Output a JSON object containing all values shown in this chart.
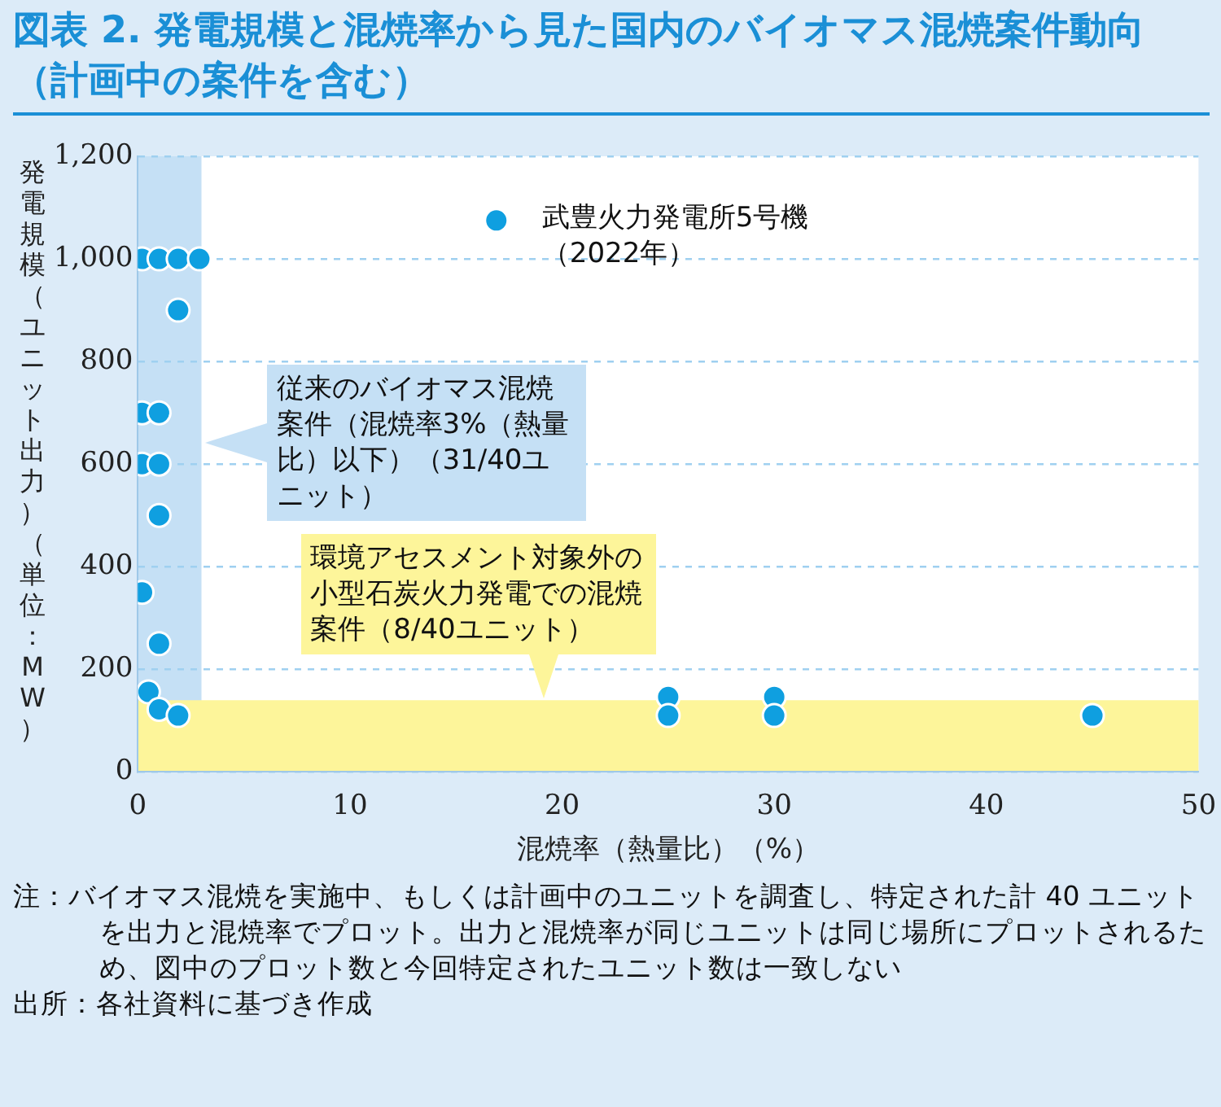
{
  "chart_data": {
    "type": "scatter",
    "title": "図表 2. 発電規模と混焼率から見た国内のバイオマス混焼案件動向（計画中の案件を含む）",
    "xlabel": "混焼率（熱量比）（%）",
    "ylabel": "発電規模（ユニット出力）（単位：MW）",
    "series": [
      {
        "color": "#0f9fe0",
        "x": [
          0.2,
          1,
          1.9,
          2.9,
          1.9,
          0.2,
          1,
          0.2,
          1,
          1,
          0.2,
          1,
          0.5,
          1,
          1.9,
          25,
          25,
          30,
          30,
          45,
          16.9
        ],
        "values": [
          1000,
          1000,
          1000,
          1000,
          900,
          700,
          700,
          600,
          600,
          500,
          350,
          250,
          156,
          122,
          110,
          146,
          110,
          146,
          110,
          110,
          1075
        ]
      }
    ],
    "xlim": [
      0,
      50
    ],
    "xticks": [
      0,
      10,
      20,
      30,
      40,
      50
    ],
    "ylim": [
      0,
      1200
    ],
    "yticks": [
      0,
      200,
      400,
      600,
      800,
      {
        "value": 1000,
        "label": "1,000"
      },
      {
        "value": 1200,
        "label": "1,200"
      }
    ],
    "grid": "y",
    "legend": false,
    "marker": "circle",
    "bands": [
      {
        "axis": "x",
        "from": 0,
        "to": 3,
        "color": "#c5e0f5",
        "label": "従来のバイオマス混焼案件（混焼率3%（熱量比）以下）（31/40ユニット）"
      },
      {
        "axis": "y",
        "from": 0,
        "to": 140,
        "color": "#fdf59a",
        "label": "環境アセスメント対象外の小型石炭火力発電での混焼案件（8/40ユニット）"
      }
    ],
    "annotations": [
      {
        "text": "武豊火力発電所5号機（2022年）",
        "x": 16.9,
        "y": 1075
      },
      "注：バイオマス混焼を実施中、もしくは計画中のユニットを調査し、特定された計 40 ユニットを出力と混焼率でプロット。出力と混焼率が同じユニットは同じ場所にプロットされるため、図中のプロット数と今回特定されたユニット数は一致しない",
      "出所：各社資料に基づき作成"
    ]
  }
}
